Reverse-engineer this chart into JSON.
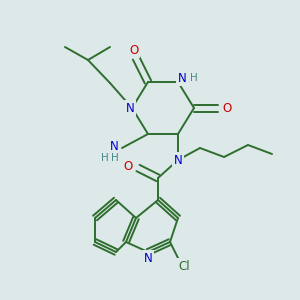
{
  "bg_color": "#dde8e8",
  "atom_colors": {
    "N": "#0000cc",
    "O": "#cc0000",
    "C_bond": "#2e6e2e",
    "Cl": "#2e6e2e",
    "H": "#4a8888"
  }
}
